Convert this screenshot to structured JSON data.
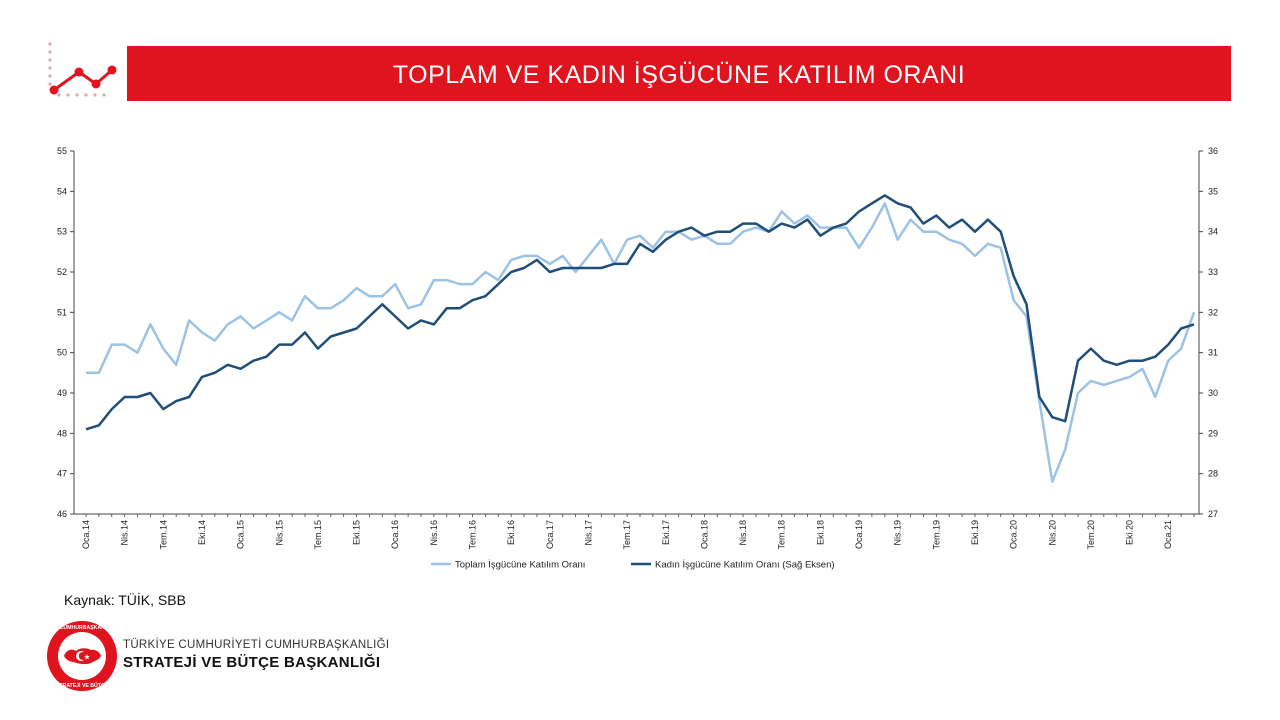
{
  "header": {
    "title": "TOPLAM VE KADIN İŞGÜCÜNE KATILIM ORANI"
  },
  "colors": {
    "banner": "#e0141e",
    "series_total": "#9cc2e5",
    "series_women": "#1f4e79"
  },
  "footer": {
    "source": "Kaynak:  TÜİK, SBB",
    "org_line1": "TÜRKİYE CUMHURİYETİ CUMHURBAŞKANLIĞI",
    "org_line2": "STRATEJİ VE BÜTÇE BAŞKANLIĞI",
    "seal_text": "T.C. CUMHURBAŞKANLIĞI STRATEJİ VE BÜTÇE BAŞKANLIĞI"
  },
  "chart_data": {
    "type": "line",
    "title": "",
    "xlabel": "",
    "ylabel": "",
    "x_start": "Oca.14",
    "x_tick_labels": [
      "Oca.14",
      "Nis.14",
      "Tem.14",
      "Eki.14",
      "Oca.15",
      "Nis.15",
      "Tem.15",
      "Eki.15",
      "Oca.16",
      "Nis.16",
      "Tem.16",
      "Eki.16",
      "Oca.17",
      "Nis.17",
      "Tem.17",
      "Eki.17",
      "Oca.18",
      "Nis.18",
      "Tem.18",
      "Eki.18",
      "Oca.19",
      "Nis.19",
      "Tem.19",
      "Eki.19",
      "Oca.20",
      "Nis.20",
      "Tem.20",
      "Eki.20",
      "Oca.21"
    ],
    "y_left": {
      "min": 46,
      "max": 55,
      "ticks": [
        "46",
        "47",
        "48",
        "49",
        "50",
        "51",
        "52",
        "53",
        "54",
        "55"
      ]
    },
    "y_right": {
      "min": 27,
      "max": 36,
      "ticks": [
        "27",
        "28",
        "29",
        "30",
        "31",
        "32",
        "33",
        "34",
        "35",
        "36"
      ]
    },
    "legend_position": "bottom",
    "series": [
      {
        "name": "Toplam İşgücüne Katılım Oranı",
        "axis": "left",
        "values": [
          49.5,
          49.5,
          50.2,
          50.2,
          50.0,
          50.7,
          50.1,
          49.7,
          50.8,
          50.5,
          50.3,
          50.7,
          50.9,
          50.6,
          50.8,
          51.0,
          50.8,
          51.4,
          51.1,
          51.1,
          51.3,
          51.6,
          51.4,
          51.4,
          51.7,
          51.1,
          51.2,
          51.8,
          51.8,
          51.7,
          51.7,
          52.0,
          51.8,
          52.3,
          52.4,
          52.4,
          52.2,
          52.4,
          52.0,
          52.4,
          52.8,
          52.2,
          52.8,
          52.9,
          52.6,
          53.0,
          53.0,
          52.8,
          52.9,
          52.7,
          52.7,
          53.0,
          53.1,
          53.0,
          53.5,
          53.2,
          53.4,
          53.1,
          53.1,
          53.1,
          52.6,
          53.1,
          53.7,
          52.8,
          53.3,
          53.0,
          53.0,
          52.8,
          52.7,
          52.4,
          52.7,
          52.6,
          51.3,
          50.9,
          48.8,
          46.8,
          47.6,
          49.0,
          49.3,
          49.2,
          49.3,
          49.4,
          49.6,
          48.9,
          49.8,
          50.1,
          51.0
        ]
      },
      {
        "name": "Kadın İşgücüne Katılım Oranı (Sağ Eksen)",
        "axis": "right",
        "values": [
          29.1,
          29.2,
          29.6,
          29.9,
          29.9,
          30.0,
          29.6,
          29.8,
          29.9,
          30.4,
          30.5,
          30.7,
          30.6,
          30.8,
          30.9,
          31.2,
          31.2,
          31.5,
          31.1,
          31.4,
          31.5,
          31.6,
          31.9,
          32.2,
          31.9,
          31.6,
          31.8,
          31.7,
          32.1,
          32.1,
          32.3,
          32.4,
          32.7,
          33.0,
          33.1,
          33.3,
          33.0,
          33.1,
          33.1,
          33.1,
          33.1,
          33.2,
          33.2,
          33.7,
          33.5,
          33.8,
          34.0,
          34.1,
          33.9,
          34.0,
          34.0,
          34.2,
          34.2,
          34.0,
          34.2,
          34.1,
          34.3,
          33.9,
          34.1,
          34.2,
          34.5,
          34.7,
          34.9,
          34.7,
          34.6,
          34.2,
          34.4,
          34.1,
          34.3,
          34.0,
          34.3,
          34.0,
          32.9,
          32.2,
          29.9,
          29.4,
          29.3,
          30.8,
          31.1,
          30.8,
          30.7,
          30.8,
          30.8,
          30.9,
          31.2,
          31.6,
          31.7
        ]
      }
    ]
  }
}
